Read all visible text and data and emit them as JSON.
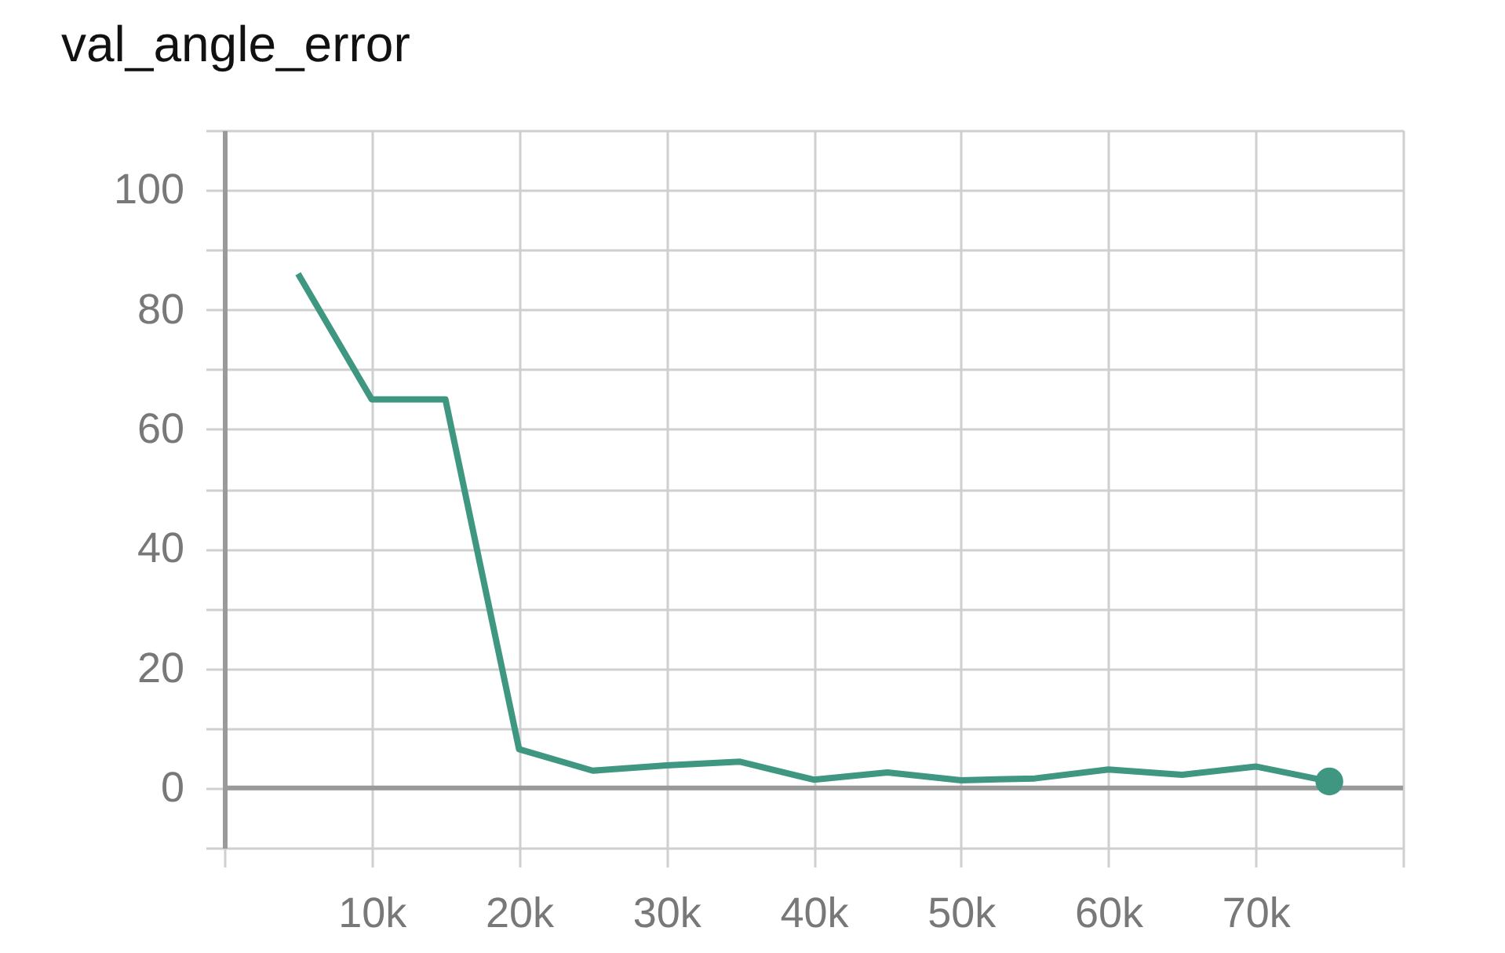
{
  "chart_data": {
    "type": "line",
    "title": "val_angle_error",
    "x": [
      5000,
      10000,
      15000,
      20000,
      25000,
      30000,
      35000,
      40000,
      45000,
      50000,
      55000,
      60000,
      65000,
      70000,
      75000
    ],
    "series": [
      {
        "color": "#3f9782",
        "values": [
          86,
          65,
          65,
          6.5,
          2.9,
          3.8,
          4.4,
          1.4,
          2.6,
          1.3,
          1.6,
          3.1,
          2.2,
          3.6,
          1.1
        ]
      },
      {
        "type": "scatter",
        "color": "#3f9782",
        "x": [
          75000
        ],
        "values": [
          1.1
        ]
      }
    ],
    "xlim": [
      0,
      80000
    ],
    "xticks": [
      {
        "value": 0,
        "label": null
      },
      {
        "value": 10000,
        "label": "10k"
      },
      {
        "value": 20000,
        "label": "20k"
      },
      {
        "value": 30000,
        "label": "30k"
      },
      {
        "value": 40000,
        "label": "40k"
      },
      {
        "value": 50000,
        "label": "50k"
      },
      {
        "value": 60000,
        "label": "60k"
      },
      {
        "value": 70000,
        "label": "70k"
      },
      {
        "value": 80000,
        "label": null
      }
    ],
    "ylim": [
      -10,
      110
    ],
    "yticks": [
      {
        "value": -10,
        "label": null
      },
      0,
      {
        "value": 10,
        "label": null
      },
      20,
      {
        "value": 30,
        "label": null
      },
      40,
      {
        "value": 50,
        "label": null
      },
      60,
      {
        "value": 70,
        "label": null
      },
      80,
      {
        "value": 90,
        "label": null
      },
      100,
      {
        "value": 110,
        "label": null
      }
    ],
    "grid": true,
    "ref_lines": [
      {
        "axis": "y",
        "value": 0,
        "color": "#999999"
      }
    ],
    "line_style": "solid"
  }
}
